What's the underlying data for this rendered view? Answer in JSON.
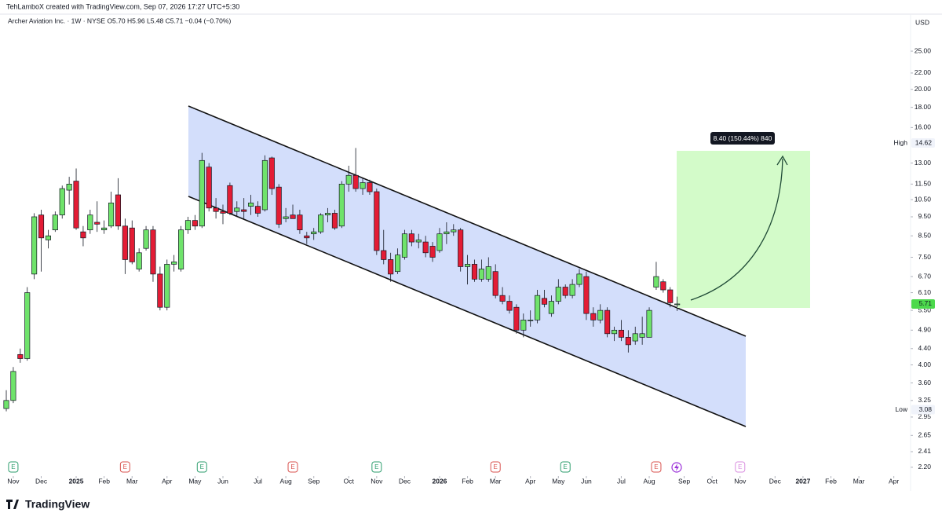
{
  "header": "TehLamboX created with TradingView.com, Sep 07, 2026 17:27 UTC+5:30",
  "footer": "TradingView",
  "chart_data": {
    "type": "candlestick",
    "legend_text": "Archer Aviation Inc. · 1W · NYSE  O5.70  H5.96  L5.48  C5.71  −0.04 (−0.70%)",
    "currency": "USD",
    "log_scale": true,
    "up_color": "#6fe36b",
    "down_color": "#e31c35",
    "xlim": [
      -0.9,
      129.4
    ],
    "ylim": [
      2.1,
      28.7
    ],
    "xticks": [
      {
        "value": 1,
        "label": "Nov"
      },
      {
        "value": 5,
        "label": "Dec"
      },
      {
        "value": 10,
        "label": "2025"
      },
      {
        "value": 14,
        "label": "Feb"
      },
      {
        "value": 18,
        "label": "Mar"
      },
      {
        "value": 23,
        "label": "Apr"
      },
      {
        "value": 27,
        "label": "May"
      },
      {
        "value": 31,
        "label": "Jun"
      },
      {
        "value": 36,
        "label": "Jul"
      },
      {
        "value": 40,
        "label": "Aug"
      },
      {
        "value": 44,
        "label": "Sep"
      },
      {
        "value": 49,
        "label": "Oct"
      },
      {
        "value": 53,
        "label": "Nov"
      },
      {
        "value": 57,
        "label": "Dec"
      },
      {
        "value": 62,
        "label": "2026"
      },
      {
        "value": 66,
        "label": "Feb"
      },
      {
        "value": 70,
        "label": "Mar"
      },
      {
        "value": 75,
        "label": "Apr"
      },
      {
        "value": 79,
        "label": "May"
      },
      {
        "value": 83,
        "label": "Jun"
      },
      {
        "value": 88,
        "label": "Jul"
      },
      {
        "value": 92,
        "label": "Aug"
      },
      {
        "value": 97,
        "label": "Sep"
      },
      {
        "value": 101,
        "label": "Oct"
      },
      {
        "value": 105,
        "label": "Nov"
      },
      {
        "value": 110,
        "label": "Dec"
      },
      {
        "value": 114,
        "label": "2027"
      },
      {
        "value": 118,
        "label": "Feb"
      },
      {
        "value": 122,
        "label": "Mar"
      },
      {
        "value": 127,
        "label": "Apr"
      }
    ],
    "yticks": [
      {
        "value": 25,
        "label": "25.00"
      },
      {
        "value": 22,
        "label": "22.00"
      },
      {
        "value": 20,
        "label": "20.00"
      },
      {
        "value": 18,
        "label": "18.00"
      },
      {
        "value": 16,
        "label": "16.00"
      },
      {
        "value": 13,
        "label": "13.00"
      },
      {
        "value": 11.5,
        "label": "11.50"
      },
      {
        "value": 10.5,
        "label": "10.50"
      },
      {
        "value": 9.5,
        "label": "9.50"
      },
      {
        "value": 8.5,
        "label": "8.50"
      },
      {
        "value": 7.5,
        "label": "7.50"
      },
      {
        "value": 6.7,
        "label": "6.70"
      },
      {
        "value": 6.1,
        "label": "6.10"
      },
      {
        "value": 5.5,
        "label": "5.50"
      },
      {
        "value": 4.9,
        "label": "4.90"
      },
      {
        "value": 4.4,
        "label": "4.40"
      },
      {
        "value": 4,
        "label": "4.00"
      },
      {
        "value": 3.6,
        "label": "3.60"
      },
      {
        "value": 3.25,
        "label": "3.25"
      },
      {
        "value": 2.95,
        "label": "2.95"
      },
      {
        "value": 2.65,
        "label": "2.65"
      },
      {
        "value": 2.41,
        "label": "2.41"
      },
      {
        "value": 2.2,
        "label": "2.20"
      }
    ],
    "open": [
      3.1,
      3.25,
      4.25,
      4.15,
      6.8,
      9.6,
      8.3,
      8.8,
      9.6,
      11.1,
      11.7,
      8.7,
      8.8,
      9.2,
      8.8,
      9.0,
      10.8,
      9.0,
      8.9,
      7.0,
      7.9,
      8.8,
      6.8,
      5.6,
      7.2,
      7.0,
      8.8,
      9.3,
      9.0,
      12.7,
      10.0,
      9.8,
      11.4,
      9.8,
      9.9,
      10.1,
      10.1,
      9.9,
      13.4,
      11.3,
      9.4,
      9.6,
      9.6,
      8.5,
      8.6,
      8.7,
      9.6,
      9.7,
      9.0,
      11.5,
      12.1,
      11.2,
      11.6,
      11.0,
      7.8,
      7.4,
      6.9,
      7.5,
      8.6,
      8.2,
      8.2,
      8.0,
      7.8,
      8.6,
      8.7,
      8.8,
      7.1,
      7.2,
      6.6,
      6.6,
      6.9,
      6.0,
      5.8,
      5.6,
      4.9,
      5.2,
      5.2,
      5.9,
      5.4,
      5.8,
      6.3,
      6.0,
      6.4,
      6.7,
      5.4,
      5.2,
      5.5,
      4.8,
      4.9,
      4.7,
      4.6,
      4.7,
      4.7,
      6.3,
      6.5,
      6.2,
      5.7
    ],
    "high": [
      3.45,
      3.95,
      4.4,
      6.3,
      9.7,
      9.9,
      8.8,
      9.8,
      11.4,
      12.0,
      12.6,
      9.0,
      9.9,
      10.4,
      9.3,
      11.0,
      11.9,
      9.4,
      9.3,
      7.9,
      9.0,
      9.0,
      7.1,
      7.4,
      7.6,
      9.0,
      9.5,
      9.6,
      13.8,
      13.0,
      10.6,
      10.2,
      11.6,
      10.4,
      10.6,
      10.8,
      10.4,
      13.6,
      13.5,
      11.5,
      10.0,
      10.2,
      9.9,
      8.7,
      8.9,
      9.7,
      10.0,
      9.9,
      11.7,
      12.8,
      14.2,
      11.9,
      11.8,
      11.2,
      8.8,
      7.7,
      7.9,
      8.8,
      8.8,
      8.6,
      8.5,
      8.2,
      8.9,
      9.2,
      9.1,
      8.9,
      7.6,
      7.4,
      7.4,
      7.5,
      7.2,
      6.3,
      6.0,
      5.7,
      5.4,
      5.5,
      6.2,
      6.2,
      6.0,
      6.6,
      6.4,
      6.6,
      7.0,
      6.9,
      5.6,
      5.7,
      5.6,
      5.0,
      5.2,
      4.9,
      5.0,
      5.3,
      5.6,
      7.3,
      6.6,
      6.3,
      5.96
    ],
    "low": [
      3.05,
      3.2,
      4.05,
      4.1,
      6.6,
      6.9,
      7.9,
      8.7,
      9.4,
      10.2,
      8.8,
      8.0,
      8.6,
      8.7,
      8.6,
      8.9,
      8.8,
      6.8,
      7.2,
      6.9,
      7.8,
      6.5,
      5.5,
      5.5,
      6.9,
      6.9,
      8.6,
      8.8,
      8.9,
      9.8,
      9.4,
      9.1,
      9.6,
      9.5,
      9.4,
      9.6,
      9.5,
      9.8,
      10.8,
      8.9,
      9.2,
      9.4,
      8.6,
      8.1,
      8.3,
      8.6,
      9.2,
      8.8,
      8.9,
      11.0,
      11.0,
      10.8,
      10.8,
      7.6,
      7.2,
      6.5,
      6.8,
      7.4,
      8.0,
      7.9,
      7.5,
      7.3,
      7.7,
      8.1,
      8.5,
      6.9,
      6.4,
      6.5,
      6.5,
      6.5,
      5.9,
      5.7,
      5.4,
      4.8,
      4.7,
      5.0,
      5.1,
      5.6,
      5.3,
      5.7,
      5.9,
      5.9,
      6.3,
      5.2,
      5.0,
      5.1,
      4.7,
      4.6,
      4.6,
      4.3,
      4.5,
      4.5,
      4.7,
      6.2,
      6.1,
      5.6,
      5.48
    ],
    "close": [
      3.25,
      3.85,
      4.15,
      6.1,
      9.5,
      8.4,
      8.5,
      9.6,
      11.2,
      11.5,
      8.9,
      8.4,
      9.6,
      9.1,
      8.9,
      10.3,
      9.0,
      7.4,
      7.3,
      7.7,
      8.8,
      6.8,
      5.6,
      7.2,
      7.3,
      8.8,
      9.3,
      9.0,
      13.2,
      10.0,
      9.8,
      9.7,
      9.7,
      10.0,
      9.8,
      10.3,
      9.7,
      13.2,
      11.2,
      9.1,
      9.5,
      9.4,
      8.8,
      8.4,
      8.7,
      9.6,
      9.7,
      8.9,
      11.5,
      12.1,
      11.2,
      11.6,
      11.0,
      7.8,
      7.4,
      6.8,
      7.6,
      8.6,
      8.2,
      8.3,
      7.7,
      7.5,
      8.6,
      8.7,
      8.8,
      7.1,
      7.2,
      6.6,
      7.0,
      7.1,
      6.0,
      5.8,
      5.5,
      4.9,
      5.2,
      5.2,
      6.0,
      5.7,
      5.8,
      6.3,
      6.0,
      6.4,
      6.8,
      5.4,
      5.2,
      5.5,
      4.8,
      4.9,
      4.7,
      4.5,
      4.8,
      4.8,
      5.5,
      6.7,
      6.2,
      5.75,
      5.71
    ],
    "price_badges": [
      {
        "label": "High",
        "value": 14.62
      },
      {
        "label": "Low",
        "value": 3.08
      }
    ],
    "last_price": 5.71,
    "last_price_color": "#4cd94c",
    "projection_label": "8.40 (150.44%) 840",
    "events": [
      {
        "x": 1,
        "label": "E",
        "color": "#2e9e6e"
      },
      {
        "x": 17,
        "label": "E",
        "color": "#d9534f"
      },
      {
        "x": 28,
        "label": "E",
        "color": "#2e9e6e"
      },
      {
        "x": 41,
        "label": "E",
        "color": "#d9534f"
      },
      {
        "x": 53,
        "label": "E",
        "color": "#2e9e6e"
      },
      {
        "x": 70,
        "label": "E",
        "color": "#d9534f"
      },
      {
        "x": 80,
        "label": "E",
        "color": "#2e9e6e"
      },
      {
        "x": 93,
        "label": "E",
        "color": "#d9534f"
      },
      {
        "x": 105,
        "label": "E",
        "color": "#d98ee0"
      }
    ]
  }
}
